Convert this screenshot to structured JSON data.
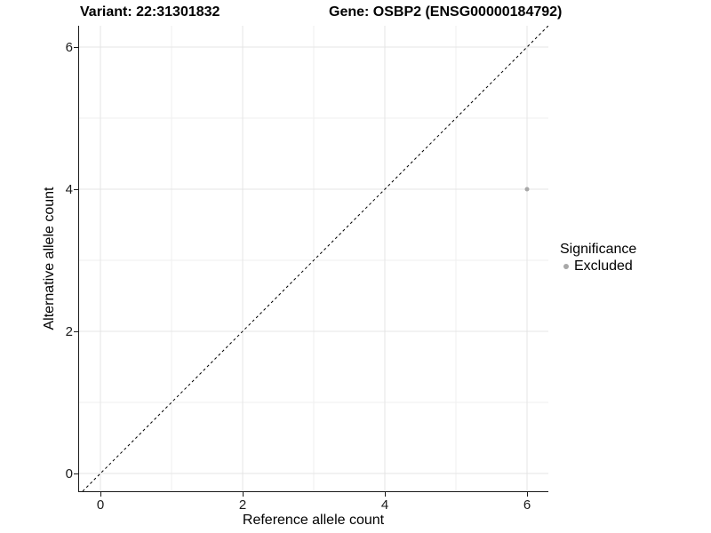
{
  "titles": {
    "variant": "Variant: 22:31301832",
    "gene": "Gene: OSBP2 (ENSG00000184792)"
  },
  "chart_data": {
    "type": "scatter",
    "xlabel": "Reference allele count",
    "ylabel": "Alternative allele count",
    "xlim": [
      -0.3,
      6.3
    ],
    "ylim": [
      -0.25,
      6.3
    ],
    "x_major_ticks": [
      0,
      2,
      4,
      6
    ],
    "y_major_ticks": [
      0,
      2,
      4,
      6
    ],
    "x_minor_gridlines": [
      1,
      3,
      5
    ],
    "y_minor_gridlines": [
      1,
      3,
      5
    ],
    "grid": "on",
    "points": [
      {
        "x": 6,
        "y": 4,
        "series": "Excluded"
      }
    ],
    "reference_line": {
      "type": "identity",
      "slope": 1,
      "intercept": 0,
      "style": "dashed"
    },
    "legend": {
      "title": "Significance",
      "position": "right",
      "items": [
        {
          "label": "Excluded",
          "color": "#a8a8a8"
        }
      ]
    }
  },
  "colors": {
    "background": "#ffffff",
    "axis_line": "#1a1a1a",
    "tick_text": "#1a1a1a",
    "grid_major": "#e4e4e4",
    "grid_minor": "#efefef",
    "dashed_line": "#000000",
    "point_excluded": "#a8a8a8"
  }
}
